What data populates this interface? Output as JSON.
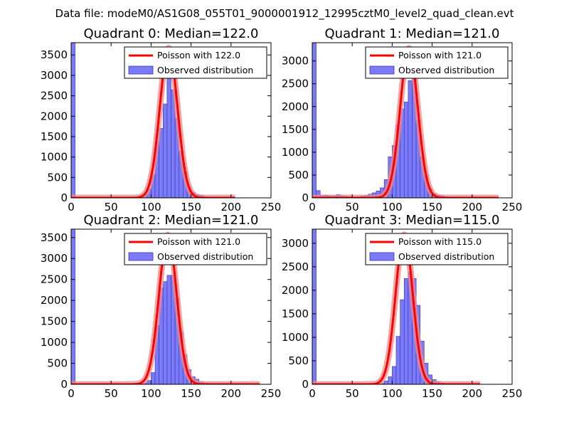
{
  "figure": {
    "suptitle": "Data file: modeM0/AS1G08_055T01_9000001912_12995cztM0_level2_quad_clean.evt",
    "colors": {
      "hist_fill": "#7b7bf7",
      "hist_edge": "#3333bb",
      "poisson_line": "#ff0000",
      "poisson_halo": "#f08a8a",
      "axes": "#000000"
    }
  },
  "chart_data": [
    {
      "type": "bar",
      "title": "Quadrant 0: Median=122.0",
      "legend": [
        "Poisson with 122.0",
        "Observed distribution"
      ],
      "legend_loc": "upper right",
      "xlim": [
        0,
        250
      ],
      "ylim": [
        0,
        3800
      ],
      "xticks": [
        0,
        50,
        100,
        150,
        200,
        250
      ],
      "yticks": [
        0,
        500,
        1000,
        1500,
        2000,
        2500,
        3000,
        3500
      ],
      "bin_width": 5,
      "bin_start": 0,
      "values": [
        3800,
        0,
        0,
        0,
        0,
        0,
        0,
        0,
        0,
        0,
        0,
        0,
        0,
        0,
        0,
        0,
        5,
        30,
        80,
        220,
        560,
        1380,
        1700,
        2300,
        3000,
        2650,
        1950,
        1150,
        640,
        250,
        130,
        80,
        60,
        30,
        15,
        10,
        5,
        2
      ],
      "poisson_mean": 122.0,
      "poisson_peak": 3670,
      "poisson_xrange": [
        0,
        205
      ]
    },
    {
      "type": "bar",
      "title": "Quadrant 1: Median=121.0",
      "legend": [
        "Poisson with 121.0",
        "Observed distribution"
      ],
      "legend_loc": "upper right",
      "xlim": [
        0,
        250
      ],
      "ylim": [
        0,
        3400
      ],
      "xticks": [
        0,
        50,
        100,
        150,
        200,
        250
      ],
      "yticks": [
        0,
        500,
        1000,
        1500,
        2000,
        2500,
        3000
      ],
      "bin_width": 5,
      "bin_start": 0,
      "values": [
        3400,
        160,
        50,
        55,
        40,
        40,
        70,
        45,
        30,
        25,
        20,
        20,
        35,
        50,
        80,
        110,
        150,
        220,
        400,
        900,
        1150,
        1600,
        1950,
        2100,
        2570,
        2600,
        1700,
        900,
        480,
        200,
        90,
        60,
        45,
        25,
        15,
        10,
        8,
        5
      ],
      "poisson_mean": 121.0,
      "poisson_peak": 3280,
      "poisson_xrange": [
        0,
        233
      ]
    },
    {
      "type": "bar",
      "title": "Quadrant 2: Median=121.0",
      "legend": [
        "Poisson with 121.0",
        "Observed distribution"
      ],
      "legend_loc": "upper right",
      "xlim": [
        0,
        250
      ],
      "ylim": [
        0,
        3700
      ],
      "xticks": [
        0,
        50,
        100,
        150,
        200,
        250
      ],
      "yticks": [
        0,
        500,
        1000,
        1500,
        2000,
        2500,
        3000,
        3500
      ],
      "bin_width": 5,
      "bin_start": 0,
      "values": [
        3700,
        0,
        0,
        0,
        0,
        0,
        0,
        0,
        0,
        0,
        0,
        0,
        0,
        0,
        0,
        0,
        0,
        10,
        25,
        90,
        280,
        1400,
        2300,
        2450,
        2600,
        2600,
        2050,
        1250,
        700,
        350,
        180,
        120,
        60,
        35,
        20,
        10,
        5,
        2,
        2,
        2,
        2,
        2,
        2,
        2,
        1
      ],
      "poisson_mean": 121.0,
      "poisson_peak": 3560,
      "poisson_xrange": [
        0,
        236
      ]
    },
    {
      "type": "bar",
      "title": "Quadrant 3: Median=115.0",
      "legend": [
        "Poisson with 115.0",
        "Observed distribution"
      ],
      "legend_loc": "upper right",
      "xlim": [
        0,
        250
      ],
      "ylim": [
        0,
        3300
      ],
      "xticks": [
        0,
        50,
        100,
        150,
        200,
        250
      ],
      "yticks": [
        0,
        500,
        1000,
        1500,
        2000,
        2500,
        3000
      ],
      "bin_width": 5,
      "bin_start": 0,
      "values": [
        3300,
        0,
        0,
        0,
        0,
        0,
        0,
        0,
        0,
        0,
        0,
        0,
        0,
        0,
        0,
        0,
        5,
        20,
        70,
        160,
        380,
        1020,
        1800,
        2250,
        2390,
        2250,
        1680,
        920,
        450,
        200,
        100,
        60,
        30,
        15,
        8,
        4,
        2,
        2,
        2,
        2,
        1
      ],
      "poisson_mean": 115.0,
      "poisson_peak": 3180,
      "poisson_xrange": [
        0,
        210
      ]
    }
  ]
}
